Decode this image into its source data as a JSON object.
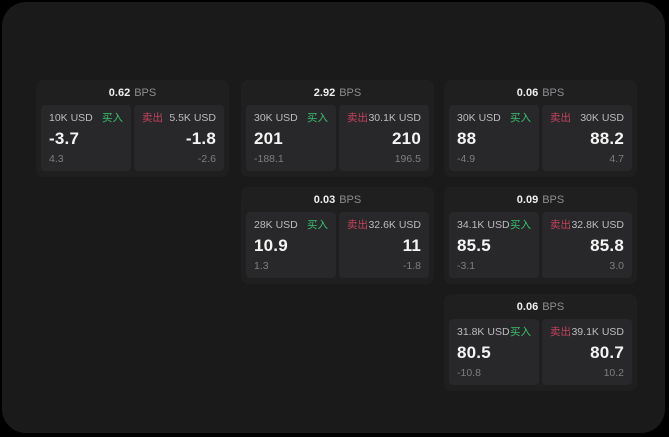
{
  "labels": {
    "bps_unit": "BPS",
    "buy": "买入",
    "sell": "卖出"
  },
  "colors": {
    "app_bg": "#1a1a1b",
    "card_bg": "#1f1f20",
    "panel_bg": "#28282a",
    "buy_green": "#37c16e",
    "sell_red": "#c2425c"
  },
  "cards": [
    {
      "bps": "0.62",
      "buy": {
        "size": "10K USD",
        "main": "-3.7",
        "sub": "4.3"
      },
      "sell": {
        "size": "5.5K USD",
        "main": "-1.8",
        "sub": "-2.6"
      }
    },
    {
      "bps": "2.92",
      "buy": {
        "size": "30K USD",
        "main": "201",
        "sub": "-188.1"
      },
      "sell": {
        "size": "30.1K USD",
        "main": "210",
        "sub": "196.5"
      }
    },
    {
      "bps": "0.06",
      "buy": {
        "size": "30K USD",
        "main": "88",
        "sub": "-4.9"
      },
      "sell": {
        "size": "30K USD",
        "main": "88.2",
        "sub": "4.7"
      }
    },
    {
      "bps": "0.03",
      "buy": {
        "size": "28K USD",
        "main": "10.9",
        "sub": "1.3"
      },
      "sell": {
        "size": "32.6K USD",
        "main": "11",
        "sub": "-1.8"
      }
    },
    {
      "bps": "0.09",
      "buy": {
        "size": "34.1K USD",
        "main": "85.5",
        "sub": "-3.1"
      },
      "sell": {
        "size": "32.8K USD",
        "main": "85.8",
        "sub": "3.0"
      }
    },
    {
      "bps": "0.06",
      "buy": {
        "size": "31.8K USD",
        "main": "80.5",
        "sub": "-10.8"
      },
      "sell": {
        "size": "39.1K USD",
        "main": "80.7",
        "sub": "10.2"
      }
    }
  ]
}
